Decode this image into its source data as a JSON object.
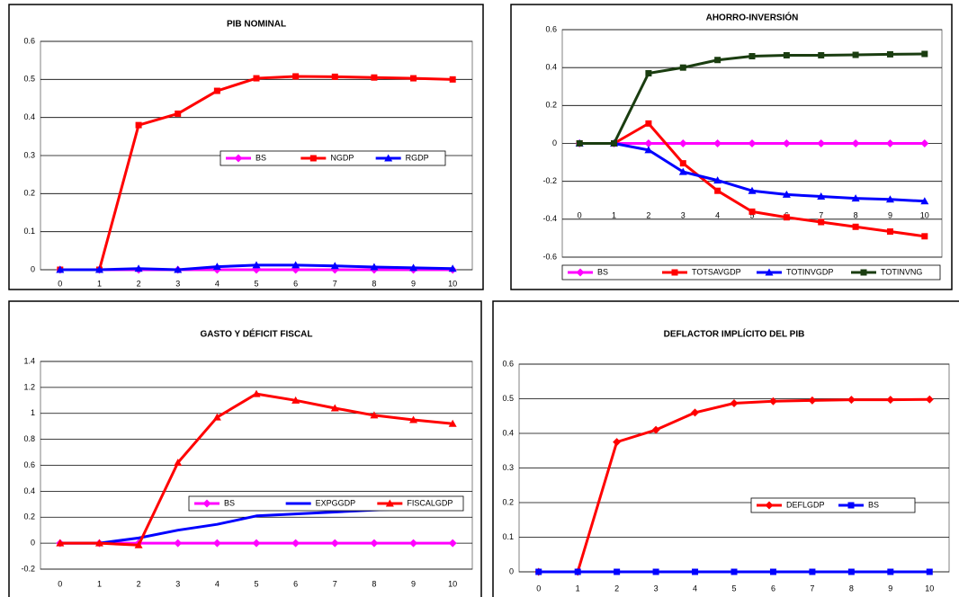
{
  "chart_data": [
    {
      "type": "line",
      "title": "PIB NOMINAL",
      "legend": "center",
      "categories": [
        "0",
        "1",
        "2",
        "3",
        "4",
        "5",
        "6",
        "7",
        "8",
        "9",
        "10"
      ],
      "ylim": [
        0,
        0.6
      ],
      "yticks": [
        0,
        0.1,
        0.2,
        0.3,
        0.4,
        0.5,
        0.6
      ],
      "grid": true,
      "series": [
        {
          "name": "BS",
          "color": "#ff00ff",
          "marker": "diamond",
          "values": [
            0,
            0,
            0,
            0,
            0,
            0,
            0,
            0,
            0,
            0,
            0
          ]
        },
        {
          "name": "NGDP",
          "color": "#ff0000",
          "marker": "square",
          "values": [
            0,
            0,
            0.38,
            0.41,
            0.47,
            0.503,
            0.508,
            0.507,
            0.505,
            0.503,
            0.5
          ]
        },
        {
          "name": "RGDP",
          "color": "#0000ff",
          "marker": "triangle",
          "values": [
            0,
            0,
            0.003,
            0,
            0.008,
            0.012,
            0.012,
            0.01,
            0.007,
            0.005,
            0.003
          ]
        }
      ]
    },
    {
      "type": "line",
      "title": "AHORRO-INVERSIÓN",
      "legend": "bottom",
      "categories": [
        "0",
        "1",
        "2",
        "3",
        "4",
        "5",
        "6",
        "7",
        "8",
        "9",
        "10"
      ],
      "ylim": [
        -0.6,
        0.6
      ],
      "yticks": [
        -0.6,
        -0.4,
        -0.2,
        0,
        0.2,
        0.4,
        0.6
      ],
      "grid": true,
      "series": [
        {
          "name": "BS",
          "color": "#ff00ff",
          "marker": "diamond",
          "values": [
            0,
            0,
            0,
            0,
            0,
            0,
            0,
            0,
            0,
            0,
            0
          ]
        },
        {
          "name": "TOTSAVGDP",
          "color": "#ff0000",
          "marker": "square",
          "values": [
            0,
            0,
            0.105,
            -0.105,
            -0.25,
            -0.36,
            -0.39,
            -0.415,
            -0.44,
            -0.465,
            -0.49
          ]
        },
        {
          "name": "TOTINVGDP",
          "color": "#0000ff",
          "marker": "triangle",
          "values": [
            0,
            0,
            -0.035,
            -0.15,
            -0.195,
            -0.25,
            -0.27,
            -0.28,
            -0.29,
            -0.295,
            -0.305
          ]
        },
        {
          "name": "TOTINVNG",
          "color": "#1a3d10",
          "marker": "square",
          "values": [
            0,
            0,
            0.37,
            0.4,
            0.44,
            0.46,
            0.465,
            0.465,
            0.467,
            0.47,
            0.472
          ]
        }
      ]
    },
    {
      "type": "line",
      "title": "GASTO Y DÉFICIT FISCAL",
      "legend": "center-right",
      "categories": [
        "0",
        "1",
        "2",
        "3",
        "4",
        "5",
        "6",
        "7",
        "8",
        "9",
        "10"
      ],
      "ylim": [
        -0.2,
        1.4
      ],
      "yticks": [
        -0.2,
        0,
        0.2,
        0.4,
        0.6,
        0.8,
        1,
        1.2,
        1.4
      ],
      "grid": true,
      "series": [
        {
          "name": "BS",
          "color": "#ff00ff",
          "marker": "diamond",
          "values": [
            0,
            0,
            0,
            0,
            0,
            0,
            0,
            0,
            0,
            0,
            0
          ]
        },
        {
          "name": "EXPGGDP",
          "color": "#0000ff",
          "marker": "none",
          "values": [
            0,
            0,
            0.04,
            0.1,
            0.145,
            0.21,
            0.225,
            0.24,
            0.255,
            0.268,
            0.28
          ]
        },
        {
          "name": "FISCALGDP",
          "color": "#ff0000",
          "marker": "triangle",
          "values": [
            0,
            0,
            -0.015,
            0.62,
            0.97,
            1.15,
            1.1,
            1.04,
            0.985,
            0.95,
            0.92
          ]
        }
      ]
    },
    {
      "type": "line",
      "title": "DEFLACTOR IMPLÍCITO DEL PIB",
      "legend": "center-right",
      "categories": [
        "0",
        "1",
        "2",
        "3",
        "4",
        "5",
        "6",
        "7",
        "8",
        "9",
        "10"
      ],
      "ylim": [
        0,
        0.6
      ],
      "yticks": [
        0,
        0.1,
        0.2,
        0.3,
        0.4,
        0.5,
        0.6
      ],
      "grid": true,
      "series": [
        {
          "name": "DEFLGDP",
          "color": "#ff0000",
          "marker": "diamond",
          "values": [
            0,
            0,
            0.375,
            0.41,
            0.46,
            0.487,
            0.493,
            0.495,
            0.497,
            0.497,
            0.498
          ]
        },
        {
          "name": "BS",
          "color": "#0000ff",
          "marker": "square",
          "values": [
            0,
            0,
            0,
            0,
            0,
            0,
            0,
            0,
            0,
            0,
            0
          ]
        }
      ]
    }
  ]
}
